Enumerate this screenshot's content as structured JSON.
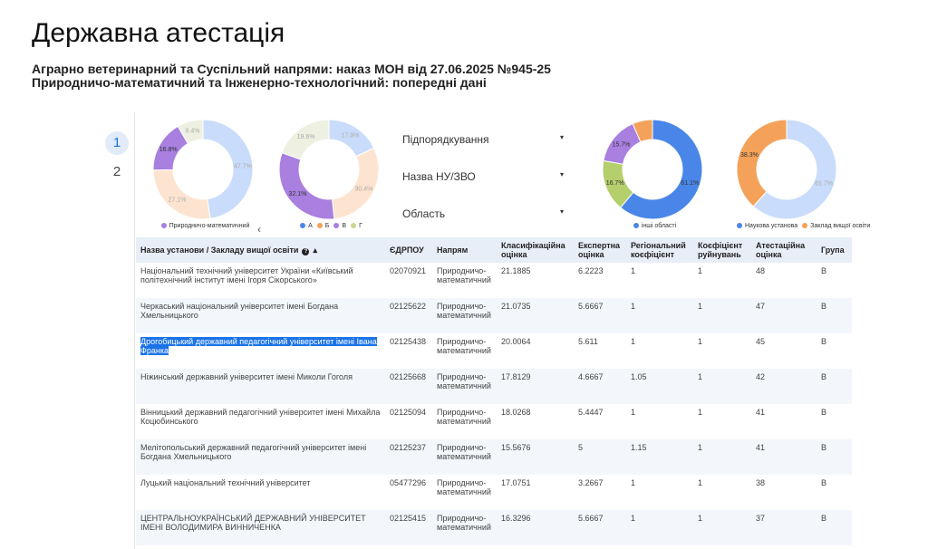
{
  "header": {
    "title": "Державна атестація",
    "subtitle_lines": [
      "Аграрно ветеринарний та Суспільний напрями: наказ МОН від 27.06.2025 №945-25",
      "Природничо-математичний та Інженерно-технологічний: попередні дані"
    ]
  },
  "pagination": [
    "1",
    "2"
  ],
  "filters": [
    "Підпорядкування",
    "Назва НУ/ЗВО",
    "Область"
  ],
  "charts": [
    {
      "type": "pie",
      "values": [
        47.7,
        27.1,
        16.8,
        8.4
      ],
      "value_labels": [
        "47.7%",
        "27.1%",
        "16.8%",
        "8.4%"
      ],
      "colors": [
        "#c9dcfb",
        "#fde4d0",
        "#a97fe0",
        "#eef0e1"
      ],
      "legend": [
        {
          "name": "Природничо-математичний",
          "color": "#a97fe0"
        }
      ]
    },
    {
      "type": "pie",
      "values": [
        17.9,
        30.4,
        32.1,
        19.6
      ],
      "value_labels": [
        "17.9%",
        "30.4%",
        "32.1%",
        "19.6%"
      ],
      "colors": [
        "#c9dcfb",
        "#fde4d0",
        "#a97fe0",
        "#eef0e1"
      ],
      "legend": [
        {
          "name": "А",
          "color": "#4a86e8"
        },
        {
          "name": "Б",
          "color": "#f4a259"
        },
        {
          "name": "В",
          "color": "#a97fe0"
        },
        {
          "name": "Г",
          "color": "#c8d88e"
        }
      ]
    },
    {
      "type": "pie",
      "values": [
        61.1,
        16.7,
        15.7,
        6.5
      ],
      "value_labels": [
        "61.1%",
        "16.7%",
        "15.7%",
        null
      ],
      "colors": [
        "#4a86e8",
        "#b5cf6d",
        "#a97fe0",
        "#f4a259"
      ],
      "legend": [
        {
          "name": "інші області",
          "color": "#4a86e8"
        }
      ]
    },
    {
      "type": "pie",
      "values": [
        61.7,
        38.3
      ],
      "value_labels": [
        "61.7%",
        "38.3%"
      ],
      "colors": [
        "#c9dcfb",
        "#f4a259"
      ],
      "legend": [
        {
          "name": "Наукова установа",
          "color": "#4a86e8"
        },
        {
          "name": "Заклад вищої освіти",
          "color": "#f4a259"
        }
      ]
    }
  ],
  "table": {
    "columns": [
      "Назва установи / Закладу вищої освіти",
      "ЄДРПОУ",
      "Напрям",
      "Класифікаційна оцінка",
      "Експертна оцінка",
      "Регіональний коєфіцієнт",
      "Коєфіцієнт руйнувань",
      "Атестаційна оцінка",
      "Група"
    ],
    "rows": [
      [
        "Національний технічний університет України «Київський політехнічний інститут імені Ігоря Сікорського»",
        "02070921",
        "Природничо-математичний",
        "21.1885",
        "6.2223",
        "1",
        "1",
        "48",
        "В"
      ],
      [
        "Черкаський національний університет імені Богдана Хмельницького",
        "02125622",
        "Природничо-математичний",
        "21.0735",
        "5.6667",
        "1",
        "1",
        "47",
        "В"
      ],
      [
        "Дрогобицький державний педагогічний університет імені Івана Франка",
        "02125438",
        "Природничо-математичний",
        "20.0064",
        "5.611",
        "1",
        "1",
        "45",
        "В"
      ],
      [
        "Ніжинський державний університет імені Миколи Гоголя",
        "02125668",
        "Природничо-математичний",
        "17.8129",
        "4.6667",
        "1.05",
        "1",
        "42",
        "В"
      ],
      [
        "Вінницький державний педагогічний університет імені Михайла Коцюбинського",
        "02125094",
        "Природничо-математичний",
        "18.0268",
        "5.4447",
        "1",
        "1",
        "41",
        "В"
      ],
      [
        "Мелітопольський державний педагогічний університет імені Богдана Хмельницького",
        "02125237",
        "Природничо-математичний",
        "15.5676",
        "5",
        "1.15",
        "1",
        "41",
        "В"
      ],
      [
        "Луцький національний технічний університет",
        "05477296",
        "Природничо-математичний",
        "17.0751",
        "3.2667",
        "1",
        "1",
        "38",
        "В"
      ],
      [
        "ЦЕНТРАЛЬНОУКРАЇНСЬКИЙ ДЕРЖАВНИЙ УНІВЕРСИТЕТ ІМЕНІ ВОЛОДИМИРА ВИННИЧЕНКА",
        "02125415",
        "Природничо-математичний",
        "16.3296",
        "5.6667",
        "1",
        "1",
        "37",
        "В"
      ]
    ]
  }
}
